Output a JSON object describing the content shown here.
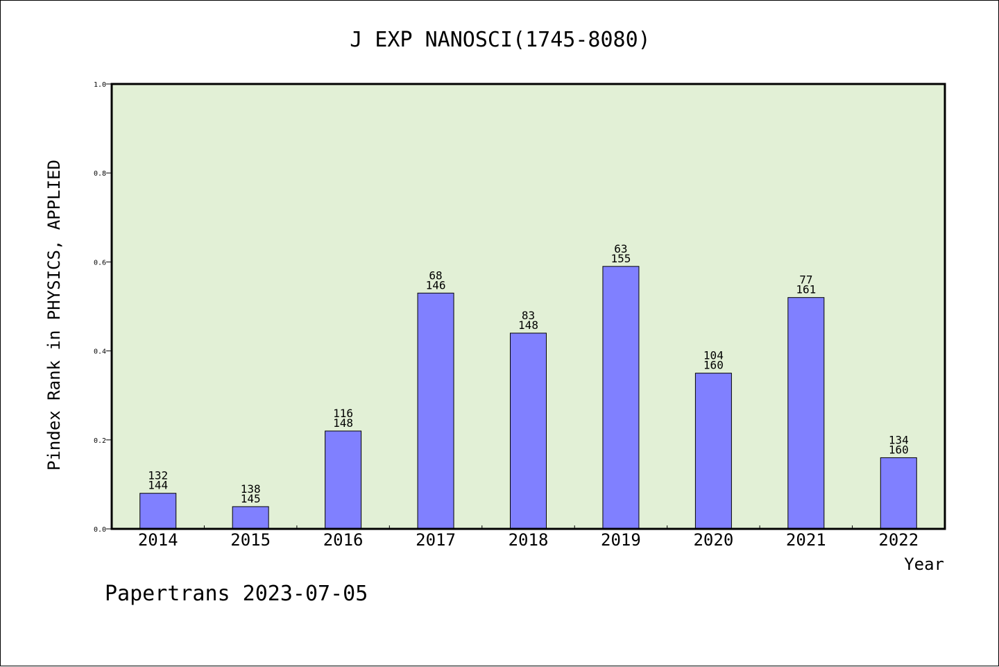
{
  "chart_data": {
    "type": "bar",
    "title": "J EXP NANOSCI(1745-8080)",
    "ylabel": "Pindex Rank in PHYSICS, APPLIED",
    "xlabel": "Year",
    "footer": "Papertrans 2023-07-05",
    "ylim": [
      0,
      1.0
    ],
    "yticks": [
      "0.0",
      "0.2",
      "0.4",
      "0.6",
      "0.8",
      "1.0"
    ],
    "grid": false,
    "colors": {
      "plot_bg": "#e2f0d6",
      "bar": "#8080ff",
      "bar_edge": "#000000"
    },
    "categories": [
      "2014",
      "2015",
      "2016",
      "2017",
      "2018",
      "2019",
      "2020",
      "2021",
      "2022"
    ],
    "values": [
      0.08,
      0.05,
      0.22,
      0.53,
      0.44,
      0.59,
      0.35,
      0.52,
      0.16
    ],
    "rank": [
      "132",
      "138",
      "116",
      "68",
      "83",
      "63",
      "104",
      "77",
      "134"
    ],
    "total": [
      "144",
      "145",
      "148",
      "146",
      "148",
      "155",
      "160",
      "161",
      "160"
    ]
  }
}
